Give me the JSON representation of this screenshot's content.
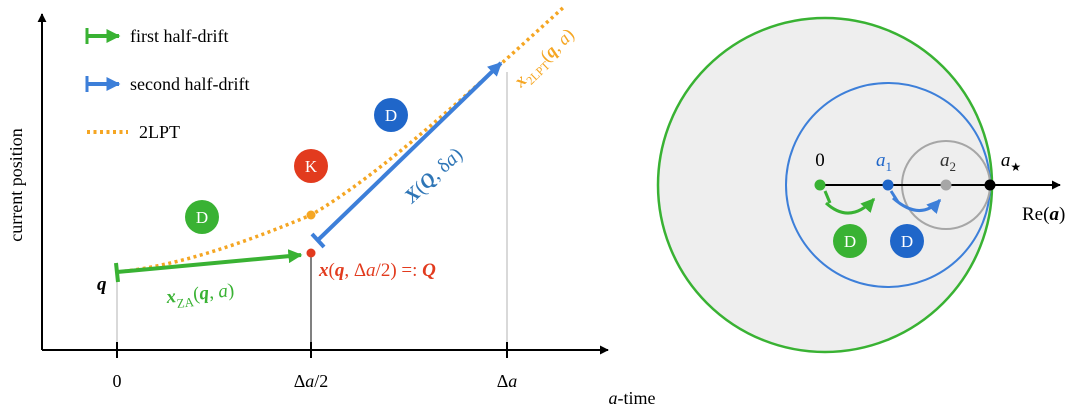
{
  "colors": {
    "green": "#39b233",
    "blue": "#3d7fd9",
    "orange": "#f5a623",
    "red": "#e23b1e",
    "darkblue": "#1f66c9",
    "gray": "#a6a6a6",
    "diskfill": "#eeeeee",
    "black": "#000000"
  },
  "left": {
    "ylabel": "current position",
    "xlabel_var": "a",
    "xlabel_rest": "-time",
    "ticks": {
      "t0": "0",
      "t1_delta": "Δ",
      "t1_a": "a",
      "t1_rest": "/2",
      "t2_delta": "Δ",
      "t2_a": "a"
    },
    "legend": [
      {
        "label": "first half-drift",
        "icon": "green-bar-arrow-icon"
      },
      {
        "label": "second half-drift",
        "icon": "blue-bar-arrow-icon"
      },
      {
        "label": "2LPT",
        "icon": "orange-dotted-line-icon"
      }
    ],
    "badges": {
      "d1": "D",
      "k": "K",
      "d2": "D"
    },
    "labels": {
      "q": "q",
      "za_x": "x",
      "za_sub": "ZA",
      "za_open": "(",
      "za_q": "q",
      "za_comma": ", ",
      "za_a": "a",
      "za_close": ")",
      "mid_x": "x",
      "mid_open": "(",
      "mid_q": "q",
      "mid_comma": ", Δ",
      "mid_a": "a",
      "mid_rest": "/2) =: ",
      "mid_Q": "Q",
      "X_X": "X",
      "X_open": "(",
      "X_Q": "Q",
      "X_comma": ", δ",
      "X_a": "a",
      "X_close": ")",
      "lpt_x": "x",
      "lpt_sub": "2LPT",
      "lpt_open": "(",
      "lpt_q": "q",
      "lpt_comma": ", ",
      "lpt_a": "a",
      "lpt_close": ")"
    }
  },
  "right": {
    "zero": "0",
    "a1_a": "a",
    "a1_sub": "1",
    "a2_a": "a",
    "a2_sub": "2",
    "astar_a": "a",
    "astar_sub": "★",
    "re_pre": "Re(",
    "re_a": "a",
    "re_post": ")",
    "badges": {
      "d_green": "D",
      "d_blue": "D"
    }
  }
}
